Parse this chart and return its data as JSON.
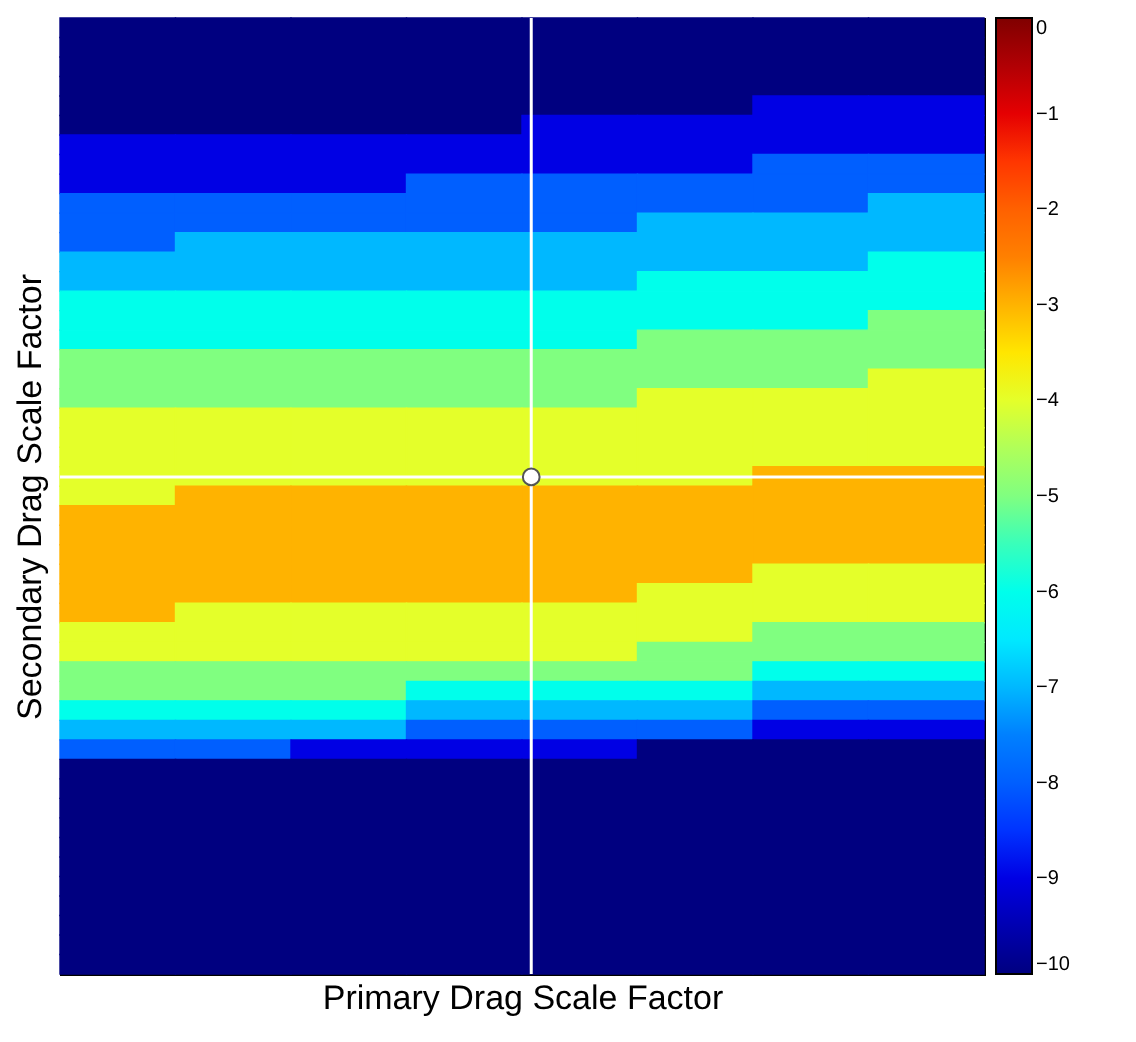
{
  "chart_data": {
    "type": "heatmap",
    "xlabel": "Primary Drag Scale Factor",
    "ylabel": "Secondary Drag Scale Factor",
    "categories": [
      null,
      null,
      null,
      null,
      null,
      null,
      null,
      null
    ],
    "y_categories": [
      null,
      null,
      null,
      null,
      null,
      null,
      null,
      null,
      null,
      null,
      null,
      null,
      null,
      null,
      null,
      null,
      null,
      null,
      null,
      null,
      null,
      null,
      null,
      null,
      null,
      null,
      null,
      null,
      null,
      null,
      null,
      null,
      null,
      null,
      null,
      null,
      null,
      null,
      null,
      null,
      null,
      null,
      null,
      null,
      null,
      null,
      null,
      null,
      null
    ],
    "tick_labels": false,
    "clim": [
      -10,
      0
    ],
    "cticks": [
      0,
      -1,
      -2,
      -3,
      -4,
      -5,
      -6,
      -7,
      -8,
      -9,
      -10
    ],
    "cells": [
      [
        -10,
        -10,
        -10,
        -10,
        -10,
        -10,
        -10,
        -10
      ],
      [
        -10,
        -10,
        -10,
        -10,
        -10,
        -10,
        -10,
        -10
      ],
      [
        -10,
        -10,
        -10,
        -10,
        -10,
        -10,
        -10,
        -10
      ],
      [
        -10,
        -10,
        -10,
        -10,
        -10,
        -10,
        -10,
        -10
      ],
      [
        -10,
        -10,
        -10,
        -10,
        -10,
        -10,
        -9,
        -9
      ],
      [
        -10,
        -10,
        -10,
        -10,
        -9,
        -9,
        -9,
        -9
      ],
      [
        -9,
        -9,
        -9,
        -9,
        -9,
        -9,
        -9,
        -9
      ],
      [
        -9,
        -9,
        -9,
        -9,
        -9,
        -9,
        -8,
        -8
      ],
      [
        -9,
        -9,
        -9,
        -8,
        -8,
        -8,
        -8,
        -8
      ],
      [
        -8,
        -8,
        -8,
        -8,
        -8,
        -8,
        -8,
        -7
      ],
      [
        -8,
        -8,
        -8,
        -8,
        -8,
        -7,
        -7,
        -7
      ],
      [
        -8,
        -7,
        -7,
        -7,
        -7,
        -7,
        -7,
        -7
      ],
      [
        -7,
        -7,
        -7,
        -7,
        -7,
        -7,
        -7,
        -6
      ],
      [
        -7,
        -7,
        -7,
        -7,
        -7,
        -6,
        -6,
        -6
      ],
      [
        -6,
        -6,
        -6,
        -6,
        -6,
        -6,
        -6,
        -6
      ],
      [
        -6,
        -6,
        -6,
        -6,
        -6,
        -6,
        -6,
        -5
      ],
      [
        -6,
        -6,
        -6,
        -6,
        -6,
        -5,
        -5,
        -5
      ],
      [
        -5,
        -5,
        -5,
        -5,
        -5,
        -5,
        -5,
        -5
      ],
      [
        -5,
        -5,
        -5,
        -5,
        -5,
        -5,
        -5,
        -4
      ],
      [
        -5,
        -5,
        -5,
        -5,
        -5,
        -4,
        -4,
        -4
      ],
      [
        -4,
        -4,
        -4,
        -4,
        -4,
        -4,
        -4,
        -4
      ],
      [
        -4,
        -4,
        -4,
        -4,
        -4,
        -4,
        -4,
        -4
      ],
      [
        -4,
        -4,
        -4,
        -4,
        -4,
        -4,
        -4,
        -4
      ],
      [
        -4,
        -4,
        -4,
        -4,
        -4,
        -4,
        -3,
        -3
      ],
      [
        -4,
        -3,
        -3,
        -3,
        -3,
        -3,
        -3,
        -3
      ],
      [
        -3,
        -3,
        -3,
        -3,
        -3,
        -3,
        -3,
        -3
      ],
      [
        -3,
        -3,
        -3,
        -3,
        -3,
        -3,
        -3,
        -3
      ],
      [
        -3,
        -3,
        -3,
        -3,
        -3,
        -3,
        -3,
        -3
      ],
      [
        -3,
        -3,
        -3,
        -3,
        -3,
        -3,
        -4,
        -4
      ],
      [
        -3,
        -3,
        -3,
        -3,
        -3,
        -4,
        -4,
        -4
      ],
      [
        -3,
        -4,
        -4,
        -4,
        -4,
        -4,
        -4,
        -4
      ],
      [
        -4,
        -4,
        -4,
        -4,
        -4,
        -4,
        -5,
        -5
      ],
      [
        -4,
        -4,
        -4,
        -4,
        -4,
        -5,
        -5,
        -5
      ],
      [
        -5,
        -5,
        -5,
        -5,
        -5,
        -5,
        -6,
        -6
      ],
      [
        -5,
        -5,
        -5,
        -6,
        -6,
        -6,
        -7,
        -7
      ],
      [
        -6,
        -6,
        -6,
        -7,
        -7,
        -7,
        -8,
        -8
      ],
      [
        -7,
        -7,
        -7,
        -8,
        -8,
        -8,
        -9,
        -9
      ],
      [
        -8,
        -8,
        -9,
        -9,
        -9,
        -10,
        -10,
        -10
      ],
      [
        -10,
        -10,
        -10,
        -10,
        -10,
        -10,
        -10,
        -10
      ],
      [
        -10,
        -10,
        -10,
        -10,
        -10,
        -10,
        -10,
        -10
      ],
      [
        -10,
        -10,
        -10,
        -10,
        -10,
        -10,
        -10,
        -10
      ],
      [
        -10,
        -10,
        -10,
        -10,
        -10,
        -10,
        -10,
        -10
      ],
      [
        -10,
        -10,
        -10,
        -10,
        -10,
        -10,
        -10,
        -10
      ],
      [
        -10,
        -10,
        -10,
        -10,
        -10,
        -10,
        -10,
        -10
      ],
      [
        -10,
        -10,
        -10,
        -10,
        -10,
        -10,
        -10,
        -10
      ],
      [
        -10,
        -10,
        -10,
        -10,
        -10,
        -10,
        -10,
        -10
      ],
      [
        -10,
        -10,
        -10,
        -10,
        -10,
        -10,
        -10,
        -10
      ],
      [
        -10,
        -10,
        -10,
        -10,
        -10,
        -10,
        -10,
        -10
      ],
      [
        -10,
        -10,
        -10,
        -10,
        -10,
        -10,
        -10,
        -10
      ]
    ]
  }
}
